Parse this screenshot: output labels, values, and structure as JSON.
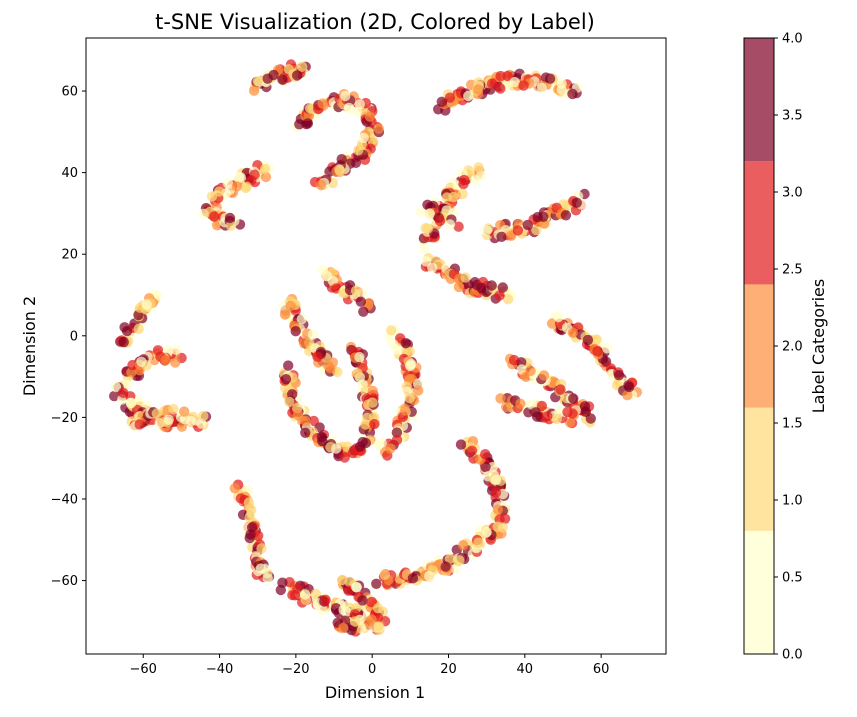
{
  "chart_data": {
    "type": "scatter",
    "title": "t-SNE Visualization (2D, Colored by Label)",
    "xlabel": "Dimension 1",
    "ylabel": "Dimension 2",
    "xlim": [
      -75,
      77
    ],
    "ylim": [
      -78,
      73
    ],
    "xticks": [
      -60,
      -40,
      -20,
      0,
      20,
      40,
      60
    ],
    "yticks": [
      -60,
      -40,
      -20,
      0,
      20,
      40,
      60
    ],
    "grid": false,
    "point_alpha": 0.7,
    "colormap": {
      "name": "YlOrRd (discrete, 5 bins)",
      "label": "Label Categories",
      "range": [
        0.0,
        4.0
      ],
      "ticks": [
        "0.0",
        "0.5",
        "1.0",
        "1.5",
        "2.0",
        "2.5",
        "3.0",
        "3.5",
        "4.0"
      ],
      "bin_colors": [
        "#ffffcc",
        "#fed976",
        "#fd8d3c",
        "#e31a1c",
        "#800026"
      ]
    },
    "clusters": [
      {
        "path": [
          [
            -31,
            60
          ],
          [
            -27,
            63
          ],
          [
            -22,
            65
          ],
          [
            -17,
            65
          ]
        ]
      },
      {
        "path": [
          [
            -19,
            52
          ],
          [
            -14,
            56
          ],
          [
            -7,
            58
          ],
          [
            -1,
            55
          ],
          [
            1,
            50
          ],
          [
            -2,
            45
          ],
          [
            -8,
            41
          ],
          [
            -14,
            37
          ]
        ]
      },
      {
        "path": [
          [
            -27,
            41
          ],
          [
            -34,
            38
          ],
          [
            -40,
            35
          ],
          [
            -43,
            31
          ],
          [
            -40,
            28
          ],
          [
            -36,
            27
          ]
        ]
      },
      {
        "path": [
          [
            18,
            56
          ],
          [
            25,
            60
          ],
          [
            32,
            62
          ],
          [
            40,
            63
          ],
          [
            47,
            62
          ],
          [
            53,
            60
          ]
        ]
      },
      {
        "path": [
          [
            28,
            41
          ],
          [
            24,
            38
          ],
          [
            20,
            33
          ],
          [
            16,
            27
          ],
          [
            14,
            22
          ]
        ]
      },
      {
        "path": [
          [
            13,
            32
          ],
          [
            18,
            30
          ],
          [
            22,
            28
          ]
        ]
      },
      {
        "path": [
          [
            30,
            25
          ],
          [
            36,
            26
          ],
          [
            42,
            27
          ],
          [
            48,
            30
          ],
          [
            55,
            34
          ]
        ]
      },
      {
        "path": [
          [
            14,
            19
          ],
          [
            19,
            16
          ],
          [
            24,
            13
          ],
          [
            30,
            11
          ],
          [
            36,
            10
          ]
        ]
      },
      {
        "path": [
          [
            -13,
            16
          ],
          [
            -9,
            13
          ],
          [
            -5,
            10
          ],
          [
            -1,
            7
          ]
        ]
      },
      {
        "path": [
          [
            -66,
            -2
          ],
          [
            -63,
            2
          ],
          [
            -60,
            6
          ],
          [
            -56,
            9
          ]
        ]
      },
      {
        "path": [
          [
            -65,
            -12
          ],
          [
            -62,
            -8
          ],
          [
            -57,
            -5
          ],
          [
            -51,
            -5
          ]
        ]
      },
      {
        "path": [
          [
            -67,
            -14
          ],
          [
            -62,
            -18
          ],
          [
            -55,
            -21
          ],
          [
            -49,
            -21
          ],
          [
            -44,
            -21
          ]
        ]
      },
      {
        "path": [
          [
            -63,
            -22
          ],
          [
            -57,
            -20
          ],
          [
            -50,
            -19
          ]
        ]
      },
      {
        "path": [
          [
            -23,
            9
          ],
          [
            -20,
            4
          ],
          [
            -17,
            -1
          ],
          [
            -14,
            -5
          ],
          [
            -10,
            -9
          ]
        ]
      },
      {
        "path": [
          [
            -22,
            -8
          ],
          [
            -21,
            -15
          ],
          [
            -18,
            -21
          ],
          [
            -13,
            -26
          ],
          [
            -7,
            -29
          ],
          [
            -3,
            -28
          ]
        ]
      },
      {
        "path": [
          [
            -5,
            -3
          ],
          [
            -3,
            -8
          ],
          [
            -1,
            -14
          ],
          [
            0,
            -20
          ],
          [
            -2,
            -27
          ]
        ]
      },
      {
        "path": [
          [
            6,
            0
          ],
          [
            9,
            -5
          ],
          [
            11,
            -12
          ],
          [
            9,
            -19
          ],
          [
            6,
            -25
          ],
          [
            3,
            -28
          ]
        ]
      },
      {
        "path": [
          [
            47,
            4
          ],
          [
            54,
            1
          ],
          [
            59,
            -3
          ],
          [
            63,
            -8
          ],
          [
            66,
            -13
          ],
          [
            69,
            -13
          ]
        ]
      },
      {
        "path": [
          [
            37,
            -7
          ],
          [
            43,
            -10
          ],
          [
            48,
            -13
          ],
          [
            54,
            -17
          ],
          [
            57,
            -20
          ]
        ]
      },
      {
        "path": [
          [
            35,
            -16
          ],
          [
            40,
            -18
          ],
          [
            46,
            -19
          ],
          [
            52,
            -20
          ]
        ]
      },
      {
        "path": [
          [
            -35,
            -36
          ],
          [
            -33,
            -42
          ],
          [
            -31,
            -48
          ],
          [
            -30,
            -54
          ],
          [
            -28,
            -60
          ]
        ]
      },
      {
        "path": [
          [
            -23,
            -61
          ],
          [
            -17,
            -64
          ],
          [
            -11,
            -66
          ],
          [
            -6,
            -68
          ],
          [
            -1,
            -70
          ]
        ]
      },
      {
        "path": [
          [
            -8,
            -60
          ],
          [
            -3,
            -62
          ],
          [
            1,
            -67
          ],
          [
            2,
            -71
          ],
          [
            -4,
            -71
          ],
          [
            -9,
            -71
          ]
        ]
      },
      {
        "path": [
          [
            2,
            -60
          ],
          [
            8,
            -60
          ],
          [
            14,
            -58
          ],
          [
            20,
            -56
          ],
          [
            26,
            -52
          ],
          [
            30,
            -49
          ]
        ]
      },
      {
        "path": [
          [
            24,
            -26
          ],
          [
            28,
            -30
          ],
          [
            32,
            -35
          ],
          [
            34,
            -42
          ],
          [
            33,
            -47
          ],
          [
            31,
            -50
          ]
        ]
      }
    ]
  }
}
